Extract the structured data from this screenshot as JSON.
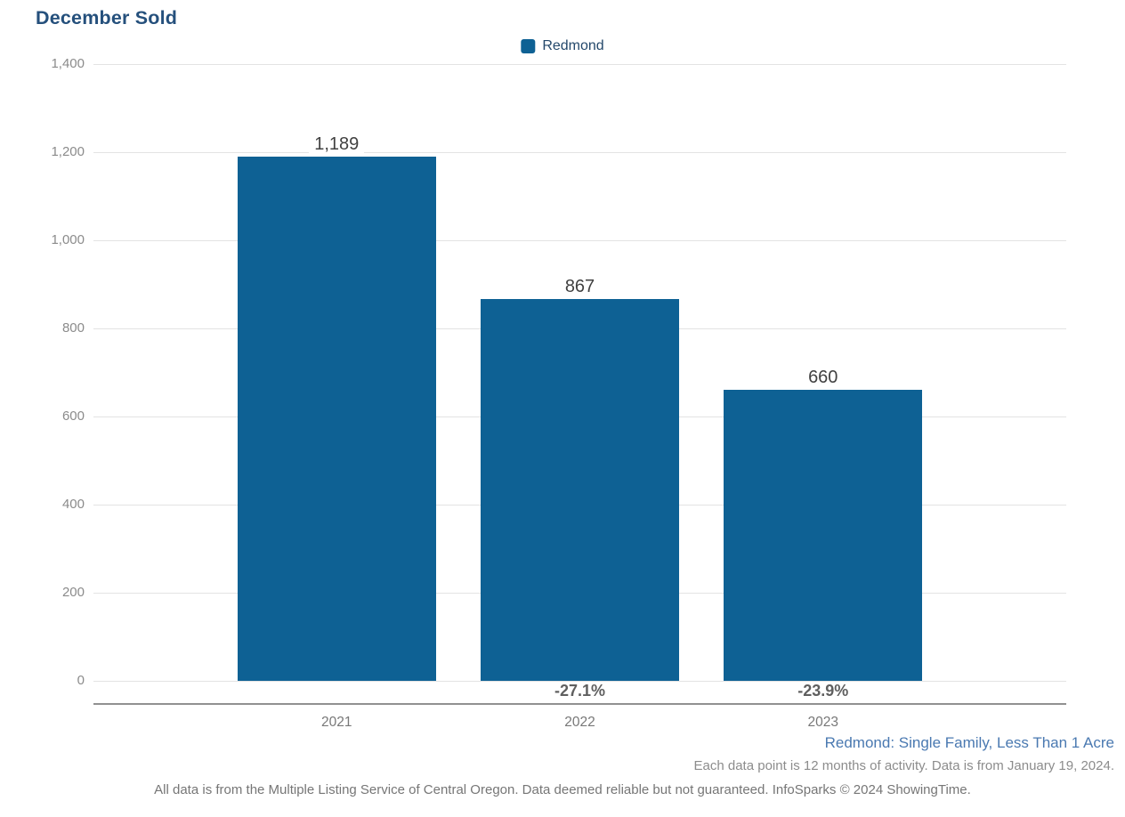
{
  "title": "December Sold",
  "legend": [
    {
      "label": "Redmond"
    }
  ],
  "chart_data": {
    "type": "bar",
    "title": "December Sold",
    "categories": [
      "2021",
      "2022",
      "2023"
    ],
    "series": [
      {
        "name": "Redmond",
        "values": [
          1189,
          867,
          660
        ]
      }
    ],
    "value_labels": [
      "1,189",
      "867",
      "660"
    ],
    "pct_change_labels": [
      "",
      "-27.1%",
      "-23.9%"
    ],
    "xlabel": "",
    "ylabel": "",
    "ylim": [
      0,
      1400
    ],
    "y_tick_step": 200,
    "y_tick_labels": [
      "0",
      "200",
      "400",
      "600",
      "800",
      "1,000",
      "1,200",
      "1,400"
    ],
    "grid": true,
    "legend_position": "top-center"
  },
  "footer": {
    "filter_label": "Redmond: Single Family, Less Than 1 Acre",
    "data_note": "Each data point is 12 months of activity. Data is from January 19, 2024.",
    "attribution": "All data is from the Multiple Listing Service of Central Oregon. Data deemed reliable but not guaranteed. InfoSparks © 2024 ShowingTime."
  },
  "colors": {
    "bar": "#0e6194",
    "title": "#25507c",
    "legend_text": "#24486b",
    "filter_text": "#4a79b1",
    "grid": "#e3e3e3",
    "axis": "#919191",
    "tick_text": "#8b8b8b",
    "value_text": "#414141",
    "pct_text": "#5f5f5f",
    "note_text": "#8c8c8c",
    "attribution_text": "#767676"
  }
}
